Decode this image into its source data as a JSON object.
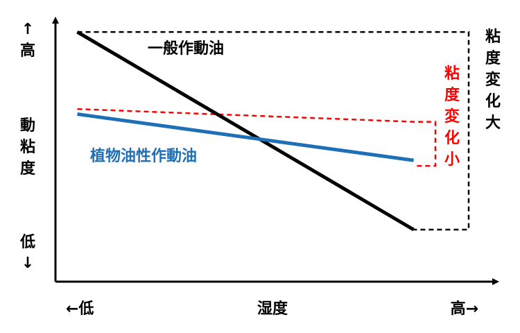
{
  "chart_data": {
    "type": "line",
    "title": "",
    "xlabel": "湿度",
    "ylabel": "動粘度",
    "x_axis": {
      "low_label": "←低",
      "high_label": "高→"
    },
    "y_axis": {
      "high_label": [
        "↑",
        "高"
      ],
      "low_label": [
        "低",
        "↓"
      ],
      "title_chars": [
        "動",
        "粘",
        "度"
      ]
    },
    "xlim": [
      0,
      1
    ],
    "ylim": [
      0,
      1
    ],
    "grid": false,
    "legend": "none",
    "series": [
      {
        "name": "一般作動油",
        "color": "#000000",
        "x": [
          0.05,
          0.82
        ],
        "y": [
          0.97,
          0.2
        ]
      },
      {
        "name": "植物油性作動油",
        "color": "#1f6fb6",
        "x": [
          0.05,
          0.82
        ],
        "y": [
          0.65,
          0.47
        ]
      }
    ],
    "reference_line": {
      "color": "#ff0000",
      "x": [
        0.05,
        0.82
      ],
      "y": [
        0.67,
        0.62
      ]
    },
    "annotations": {
      "large_change": {
        "text_chars": [
          "粘",
          "度",
          "変",
          "化",
          "大"
        ],
        "color": "#000000"
      },
      "small_change": {
        "text_chars": [
          "粘",
          "度",
          "変",
          "化",
          "小"
        ],
        "color": "#ff0000"
      }
    }
  }
}
